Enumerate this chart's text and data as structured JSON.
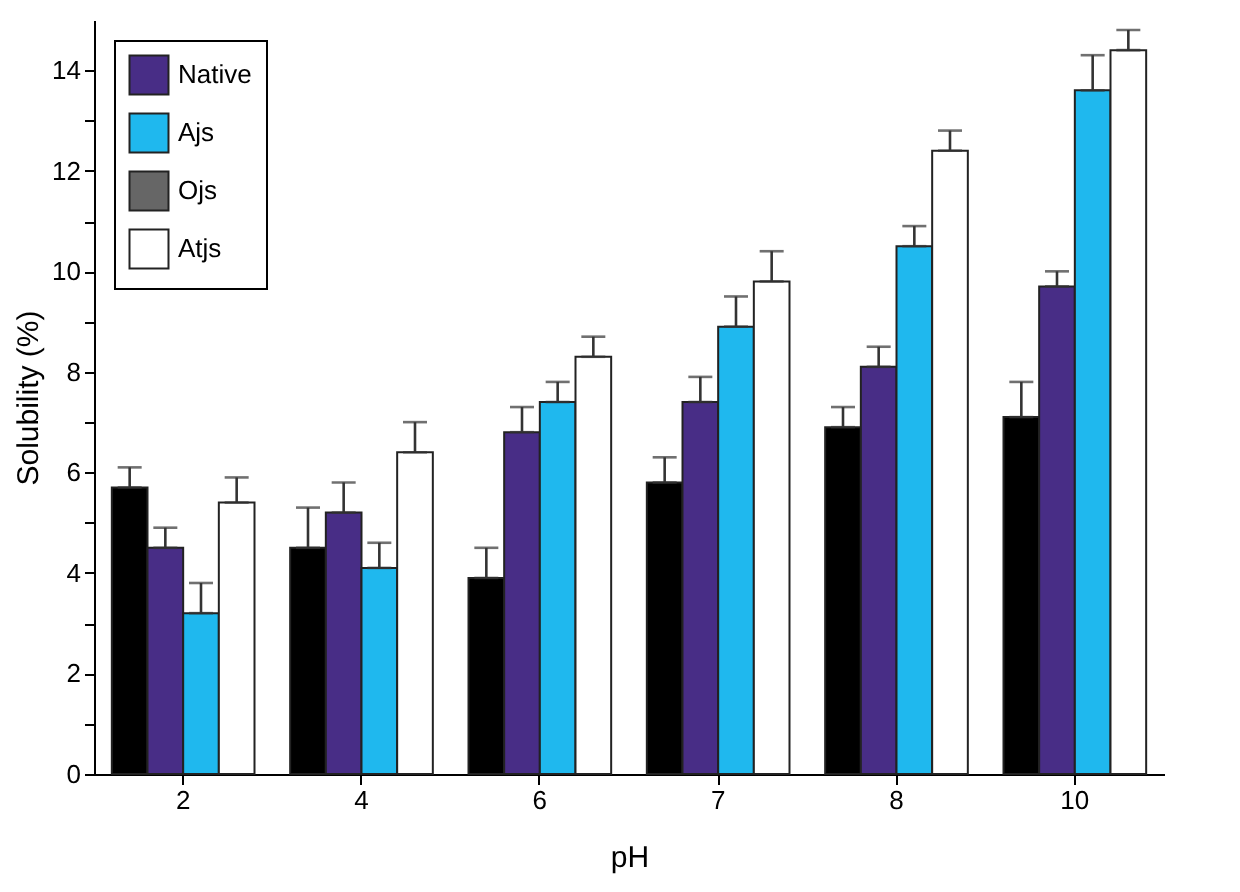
{
  "chart_data": {
    "type": "bar",
    "xlabel": "pH",
    "ylabel": "Solubility (%)",
    "categories": [
      "2",
      "4",
      "6",
      "7",
      "8",
      "10"
    ],
    "series": [
      {
        "color": "#000000",
        "values": [
          5.7,
          4.5,
          3.9,
          5.8,
          6.9,
          7.1
        ],
        "errors": [
          [
            5.7,
            6.1
          ],
          [
            4.5,
            5.3
          ],
          [
            3.9,
            4.5
          ],
          [
            5.8,
            6.3
          ],
          [
            6.9,
            7.3
          ],
          [
            7.1,
            7.8
          ]
        ]
      },
      {
        "name": "Native",
        "color": "#482d86",
        "values": [
          4.5,
          5.2,
          6.8,
          7.4,
          8.1,
          9.7
        ],
        "errors": [
          [
            4.5,
            4.9
          ],
          [
            5.2,
            5.8
          ],
          [
            6.8,
            7.3
          ],
          [
            7.4,
            7.9
          ],
          [
            8.1,
            8.5
          ],
          [
            9.7,
            10.0
          ]
        ]
      },
      {
        "name": "Ajs",
        "color": "#1fb8ee",
        "values": [
          3.2,
          4.1,
          7.4,
          8.9,
          10.5,
          13.6
        ],
        "errors": [
          [
            3.2,
            3.8
          ],
          [
            4.1,
            4.6
          ],
          [
            7.4,
            7.8
          ],
          [
            8.9,
            9.5
          ],
          [
            10.5,
            10.9
          ],
          [
            13.6,
            14.3
          ]
        ]
      },
      {
        "name": "Ojs",
        "color": "#666666",
        "values": [
          null,
          null,
          null,
          null,
          null,
          null
        ]
      },
      {
        "name": "Atjs",
        "color": "#ffffff",
        "values": [
          5.4,
          6.4,
          8.3,
          9.8,
          12.4,
          14.4
        ],
        "errors": [
          [
            5.4,
            5.9
          ],
          [
            6.4,
            7.0
          ],
          [
            8.3,
            8.7
          ],
          [
            9.8,
            10.4
          ],
          [
            12.4,
            12.8
          ],
          [
            14.4,
            14.8
          ]
        ]
      }
    ],
    "ylim": [
      0,
      15
    ],
    "yticks": [
      0,
      {
        "value": 1,
        "label": null
      },
      2,
      {
        "value": 3,
        "label": null
      },
      4,
      {
        "value": 5,
        "label": null
      },
      6,
      {
        "value": 7,
        "label": null
      },
      8,
      {
        "value": 9,
        "label": null
      },
      10,
      {
        "value": 11,
        "label": null
      },
      12,
      {
        "value": 13,
        "label": null
      },
      14
    ],
    "grid": false,
    "legend": "top left"
  }
}
